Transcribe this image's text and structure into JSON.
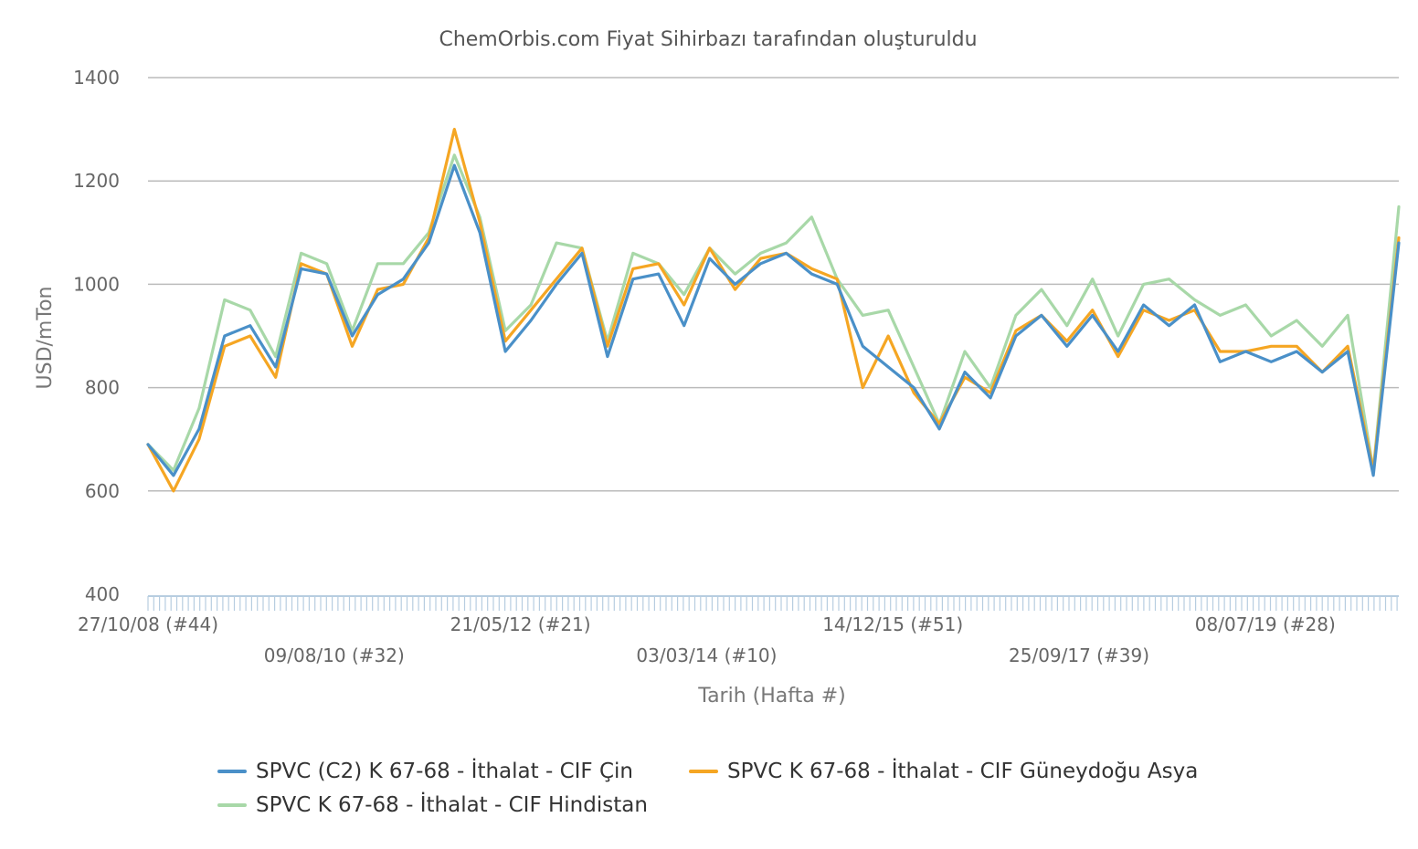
{
  "chart_data": {
    "type": "line",
    "title": "ChemOrbis.com Fiyat Sihirbazı tarafından oluşturuldu",
    "xlabel": "Tarih (Hafta #)",
    "ylabel": "USD/mTon",
    "ylim": [
      400,
      1400
    ],
    "yticks": [
      "1400",
      "1200",
      "1000",
      "800",
      "600",
      "400"
    ],
    "x_tick_labels": [
      "27/10/08 (#44)",
      "09/08/10 (#32)",
      "21/05/12 (#21)",
      "03/03/14 (#10)",
      "14/12/15 (#51)",
      "25/09/17 (#39)",
      "08/07/19 (#28)"
    ],
    "grid": true,
    "legend_position": "bottom",
    "x": [
      "2008-10-27",
      "2009-01",
      "2009-04",
      "2009-07",
      "2009-10",
      "2010-01",
      "2010-04",
      "2010-07",
      "2010-10",
      "2011-01",
      "2011-04",
      "2011-07",
      "2011-10",
      "2012-01",
      "2012-04",
      "2012-07",
      "2012-10",
      "2013-01",
      "2013-04",
      "2013-07",
      "2013-10",
      "2014-01",
      "2014-04",
      "2014-07",
      "2014-10",
      "2015-01",
      "2015-04",
      "2015-07",
      "2015-10",
      "2016-01",
      "2016-04",
      "2016-07",
      "2016-10",
      "2017-01",
      "2017-04",
      "2017-07",
      "2017-10",
      "2018-01",
      "2018-04",
      "2018-07",
      "2018-10",
      "2019-01",
      "2019-04",
      "2019-07",
      "2019-10",
      "2020-01",
      "2020-04",
      "2020-07",
      "2020-10",
      "2021-01"
    ],
    "series": [
      {
        "name": "SPVC (C2) K 67-68 - İthalat - CIF Çin",
        "color": "#4a90c8",
        "values": [
          690,
          630,
          720,
          900,
          920,
          840,
          1030,
          1020,
          900,
          980,
          1010,
          1080,
          1230,
          1100,
          870,
          930,
          1000,
          1060,
          860,
          1010,
          1020,
          920,
          1050,
          1000,
          1040,
          1060,
          1020,
          1000,
          880,
          840,
          800,
          720,
          830,
          780,
          900,
          940,
          880,
          940,
          870,
          960,
          920,
          960,
          850,
          870,
          850,
          870,
          830,
          870,
          630,
          1080
        ]
      },
      {
        "name": "SPVC K 67-68 - İthalat - CIF Güneydoğu Asya",
        "color": "#f5a623",
        "values": [
          690,
          600,
          700,
          880,
          900,
          820,
          1040,
          1020,
          880,
          990,
          1000,
          1090,
          1300,
          1120,
          890,
          950,
          1010,
          1070,
          880,
          1030,
          1040,
          960,
          1070,
          990,
          1050,
          1060,
          1030,
          1010,
          800,
          900,
          790,
          730,
          820,
          790,
          910,
          940,
          890,
          950,
          860,
          950,
          930,
          950,
          870,
          870,
          880,
          880,
          830,
          880,
          640,
          1090
        ]
      },
      {
        "name": "SPVC K 67-68 - İthalat - CIF Hindistan",
        "color": "#a8d8a8",
        "values": [
          690,
          640,
          760,
          970,
          950,
          860,
          1060,
          1040,
          910,
          1040,
          1040,
          1100,
          1250,
          1130,
          910,
          960,
          1080,
          1070,
          890,
          1060,
          1040,
          980,
          1070,
          1020,
          1060,
          1080,
          1130,
          1010,
          940,
          950,
          840,
          730,
          870,
          800,
          940,
          990,
          920,
          1010,
          900,
          1000,
          1010,
          970,
          940,
          960,
          900,
          930,
          880,
          940,
          640,
          1150
        ]
      }
    ]
  }
}
